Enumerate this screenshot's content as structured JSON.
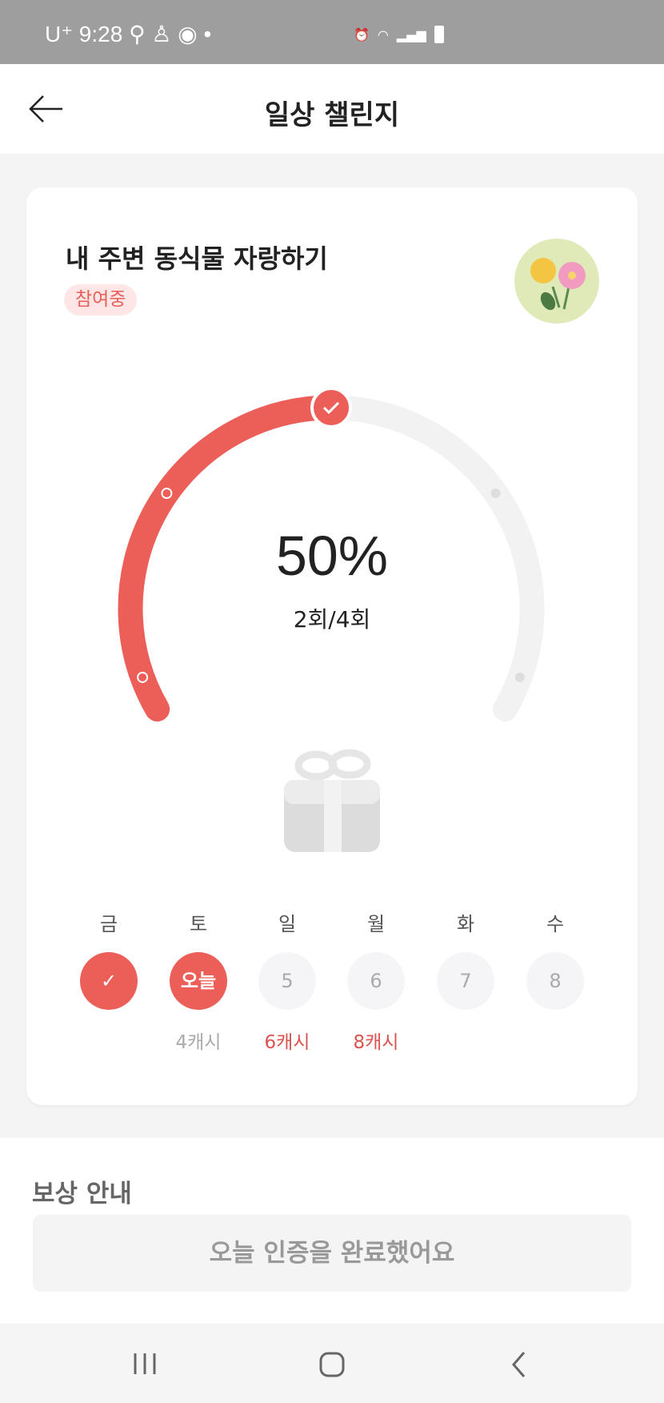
{
  "status_bar": {
    "carrier": "U⁺",
    "time": "9:28"
  },
  "header": {
    "title": "일상 챌린지",
    "back_icon": "arrow-left-icon"
  },
  "challenge": {
    "title": "내 주변 동식물 자랑하기",
    "badge": "참여중",
    "progress_percent": 50,
    "percent_label": "50%",
    "count_label": "2회/4회",
    "completed": 2,
    "total": 4,
    "accent_color": "#ec5f59",
    "days": [
      {
        "label": "금",
        "state": "done",
        "text": "",
        "cash": ""
      },
      {
        "label": "토",
        "state": "today",
        "text": "오늘",
        "cash": "4캐시"
      },
      {
        "label": "일",
        "state": "future",
        "text": "5",
        "cash": "6캐시"
      },
      {
        "label": "월",
        "state": "future",
        "text": "6",
        "cash": "8캐시"
      },
      {
        "label": "화",
        "state": "future",
        "text": "7",
        "cash": ""
      },
      {
        "label": "수",
        "state": "future",
        "text": "8",
        "cash": ""
      }
    ]
  },
  "reward": {
    "title": "보상 안내",
    "button": "오늘 인증을 완료했어요"
  }
}
